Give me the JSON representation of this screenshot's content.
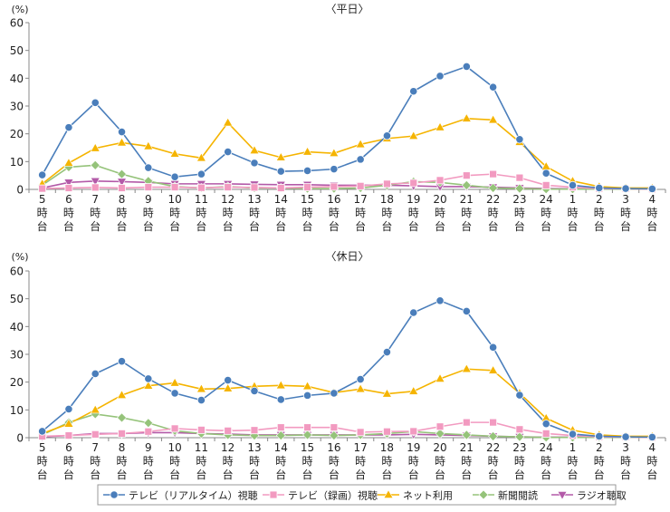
{
  "chart_data": [
    {
      "type": "line",
      "title": "〈平日〉",
      "ylabel": "(%)",
      "ylim": [
        0,
        60
      ],
      "yticks": [
        0,
        10,
        20,
        30,
        40,
        50,
        60
      ],
      "grid": "none",
      "categories": [
        "5",
        "6",
        "7",
        "8",
        "9",
        "10",
        "11",
        "12",
        "13",
        "14",
        "15",
        "16",
        "17",
        "18",
        "19",
        "20",
        "21",
        "22",
        "23",
        "24",
        "1",
        "2",
        "3",
        "4"
      ],
      "category_suffix": [
        "時",
        "台"
      ],
      "series": [
        {
          "name": "テレビ（リアルタイム）視聴",
          "color": "#4a7ebb",
          "marker": "circle",
          "values": [
            5.2,
            22.3,
            31.2,
            20.7,
            7.8,
            4.5,
            5.5,
            13.5,
            9.5,
            6.5,
            6.7,
            7.3,
            10.8,
            19.3,
            35.3,
            40.8,
            44.2,
            36.8,
            18.0,
            5.8,
            1.5,
            0.5,
            0.3,
            0.2
          ]
        },
        {
          "name": "テレビ（録画）視聴",
          "color": "#f29ac0",
          "marker": "square",
          "values": [
            0.3,
            0.5,
            0.7,
            0.5,
            0.8,
            0.8,
            0.6,
            0.8,
            0.7,
            0.5,
            0.8,
            1.0,
            1.2,
            2.0,
            2.3,
            3.3,
            5.0,
            5.5,
            4.2,
            1.5,
            0.8,
            0.3,
            0.2,
            0.1
          ]
        },
        {
          "name": "ネット利用",
          "color": "#f5b400",
          "marker": "triangle-up",
          "values": [
            2.0,
            9.5,
            14.8,
            16.8,
            15.5,
            12.8,
            11.3,
            24.0,
            14.0,
            11.5,
            13.5,
            13.0,
            16.2,
            18.3,
            19.2,
            22.3,
            25.5,
            25.0,
            17.0,
            8.2,
            3.0,
            1.0,
            0.5,
            0.5
          ]
        },
        {
          "name": "新聞閲読",
          "color": "#95c37a",
          "marker": "diamond",
          "values": [
            1.5,
            8.0,
            8.7,
            5.5,
            3.0,
            1.0,
            0.5,
            1.0,
            0.5,
            0.5,
            0.3,
            0.3,
            0.5,
            1.5,
            2.8,
            2.5,
            1.5,
            0.5,
            0.3,
            0.1,
            0.1,
            0.1,
            0.1,
            0.1
          ]
        },
        {
          "name": "ラジオ聴取",
          "color": "#b35aa8",
          "marker": "triangle-down",
          "values": [
            0.5,
            2.5,
            3.0,
            2.8,
            2.5,
            2.0,
            2.0,
            2.0,
            1.8,
            1.7,
            1.7,
            1.5,
            1.5,
            1.5,
            1.3,
            1.0,
            1.0,
            0.8,
            0.5,
            0.3,
            0.2,
            0.1,
            0.1,
            0.1
          ]
        }
      ]
    },
    {
      "type": "line",
      "title": "〈休日〉",
      "ylabel": "(%)",
      "ylim": [
        0,
        60
      ],
      "yticks": [
        0,
        10,
        20,
        30,
        40,
        50,
        60
      ],
      "grid": "none",
      "categories": [
        "5",
        "6",
        "7",
        "8",
        "9",
        "10",
        "11",
        "12",
        "13",
        "14",
        "15",
        "16",
        "17",
        "18",
        "19",
        "20",
        "21",
        "22",
        "23",
        "24",
        "1",
        "2",
        "3",
        "4"
      ],
      "category_suffix": [
        "時",
        "台"
      ],
      "series": [
        {
          "name": "テレビ（リアルタイム）視聴",
          "color": "#4a7ebb",
          "marker": "circle",
          "values": [
            2.3,
            10.3,
            23.0,
            27.5,
            21.2,
            16.0,
            13.5,
            20.7,
            16.8,
            13.7,
            15.2,
            16.0,
            21.0,
            30.8,
            45.0,
            49.3,
            45.5,
            32.5,
            15.3,
            5.0,
            1.3,
            0.5,
            0.3,
            0.2
          ]
        },
        {
          "name": "テレビ（録画）視聴",
          "color": "#f29ac0",
          "marker": "square",
          "values": [
            0.5,
            0.8,
            1.2,
            1.5,
            2.2,
            3.3,
            2.8,
            2.5,
            2.7,
            3.7,
            3.7,
            3.7,
            2.0,
            2.2,
            2.3,
            4.0,
            5.5,
            5.5,
            3.0,
            1.5,
            0.8,
            0.3,
            0.2,
            0.1
          ]
        },
        {
          "name": "ネット利用",
          "color": "#f5b400",
          "marker": "triangle-up",
          "values": [
            1.5,
            5.0,
            10.0,
            15.3,
            18.7,
            19.7,
            17.5,
            17.7,
            18.5,
            18.8,
            18.5,
            16.2,
            17.5,
            15.8,
            16.7,
            21.2,
            24.7,
            24.2,
            16.0,
            7.0,
            2.7,
            1.0,
            0.5,
            0.5
          ]
        },
        {
          "name": "新聞閲読",
          "color": "#95c37a",
          "marker": "diamond",
          "values": [
            1.0,
            5.5,
            8.5,
            7.2,
            5.3,
            2.5,
            1.5,
            1.0,
            0.8,
            0.8,
            1.0,
            0.8,
            1.0,
            1.5,
            2.2,
            1.5,
            1.0,
            0.5,
            0.3,
            0.1,
            0.1,
            0.1,
            0.1,
            0.1
          ]
        },
        {
          "name": "ラジオ聴取",
          "color": "#b35aa8",
          "marker": "triangle-down",
          "values": [
            0.3,
            0.8,
            1.5,
            1.5,
            1.8,
            1.8,
            1.5,
            1.3,
            1.0,
            1.0,
            1.0,
            1.0,
            1.0,
            1.0,
            1.2,
            1.0,
            0.8,
            0.5,
            0.3,
            0.2,
            0.2,
            0.1,
            0.1,
            0.1
          ]
        }
      ]
    }
  ],
  "legend": {
    "placement": "bottom",
    "items": [
      {
        "label": "テレビ（リアルタイム）視聴",
        "color": "#4a7ebb",
        "marker": "circle"
      },
      {
        "label": "テレビ（録画）視聴",
        "color": "#f29ac0",
        "marker": "square"
      },
      {
        "label": "ネット利用",
        "color": "#f5b400",
        "marker": "triangle-up"
      },
      {
        "label": "新聞閲読",
        "color": "#95c37a",
        "marker": "diamond"
      },
      {
        "label": "ラジオ聴取",
        "color": "#b35aa8",
        "marker": "triangle-down"
      }
    ]
  }
}
